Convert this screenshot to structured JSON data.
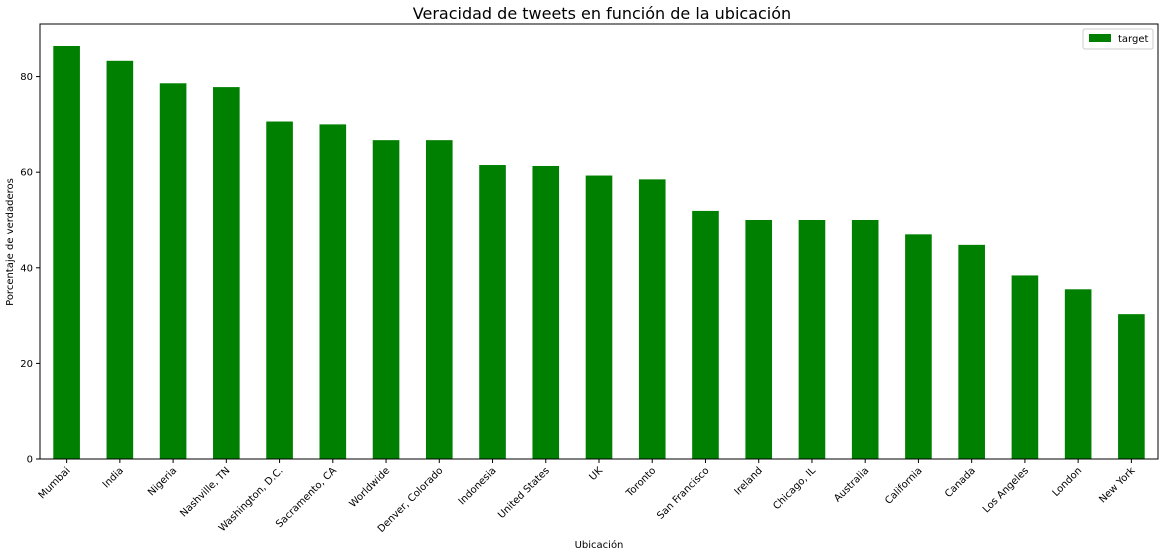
{
  "chart_data": {
    "type": "bar",
    "title": "Veracidad de tweets en función de la ubicación",
    "xlabel": "Ubicación",
    "ylabel": "Porcentaje de verdaderos",
    "categories": [
      "Mumbai",
      "India",
      "Nigeria",
      "Nashville, TN",
      "Washington, D.C.",
      "Sacramento, CA",
      "Worldwide",
      "Denver, Colorado",
      "Indonesia",
      "United States",
      "UK",
      "Toronto",
      "San Francisco",
      "Ireland",
      "Chicago, IL",
      "Australia",
      "California",
      "Canada",
      "Los Angeles",
      "London",
      "New York"
    ],
    "series": [
      {
        "name": "target",
        "color": "#008000",
        "values": [
          86.4,
          83.3,
          78.6,
          77.8,
          70.6,
          70.0,
          66.7,
          66.7,
          61.5,
          61.3,
          59.3,
          58.5,
          51.9,
          50.0,
          50.0,
          50.0,
          47.0,
          44.8,
          38.4,
          35.5,
          30.3
        ]
      }
    ],
    "ylim": [
      0,
      91
    ],
    "yticks": [
      0,
      20,
      40,
      60,
      80
    ],
    "grid": false,
    "legend_position": "upper right"
  }
}
